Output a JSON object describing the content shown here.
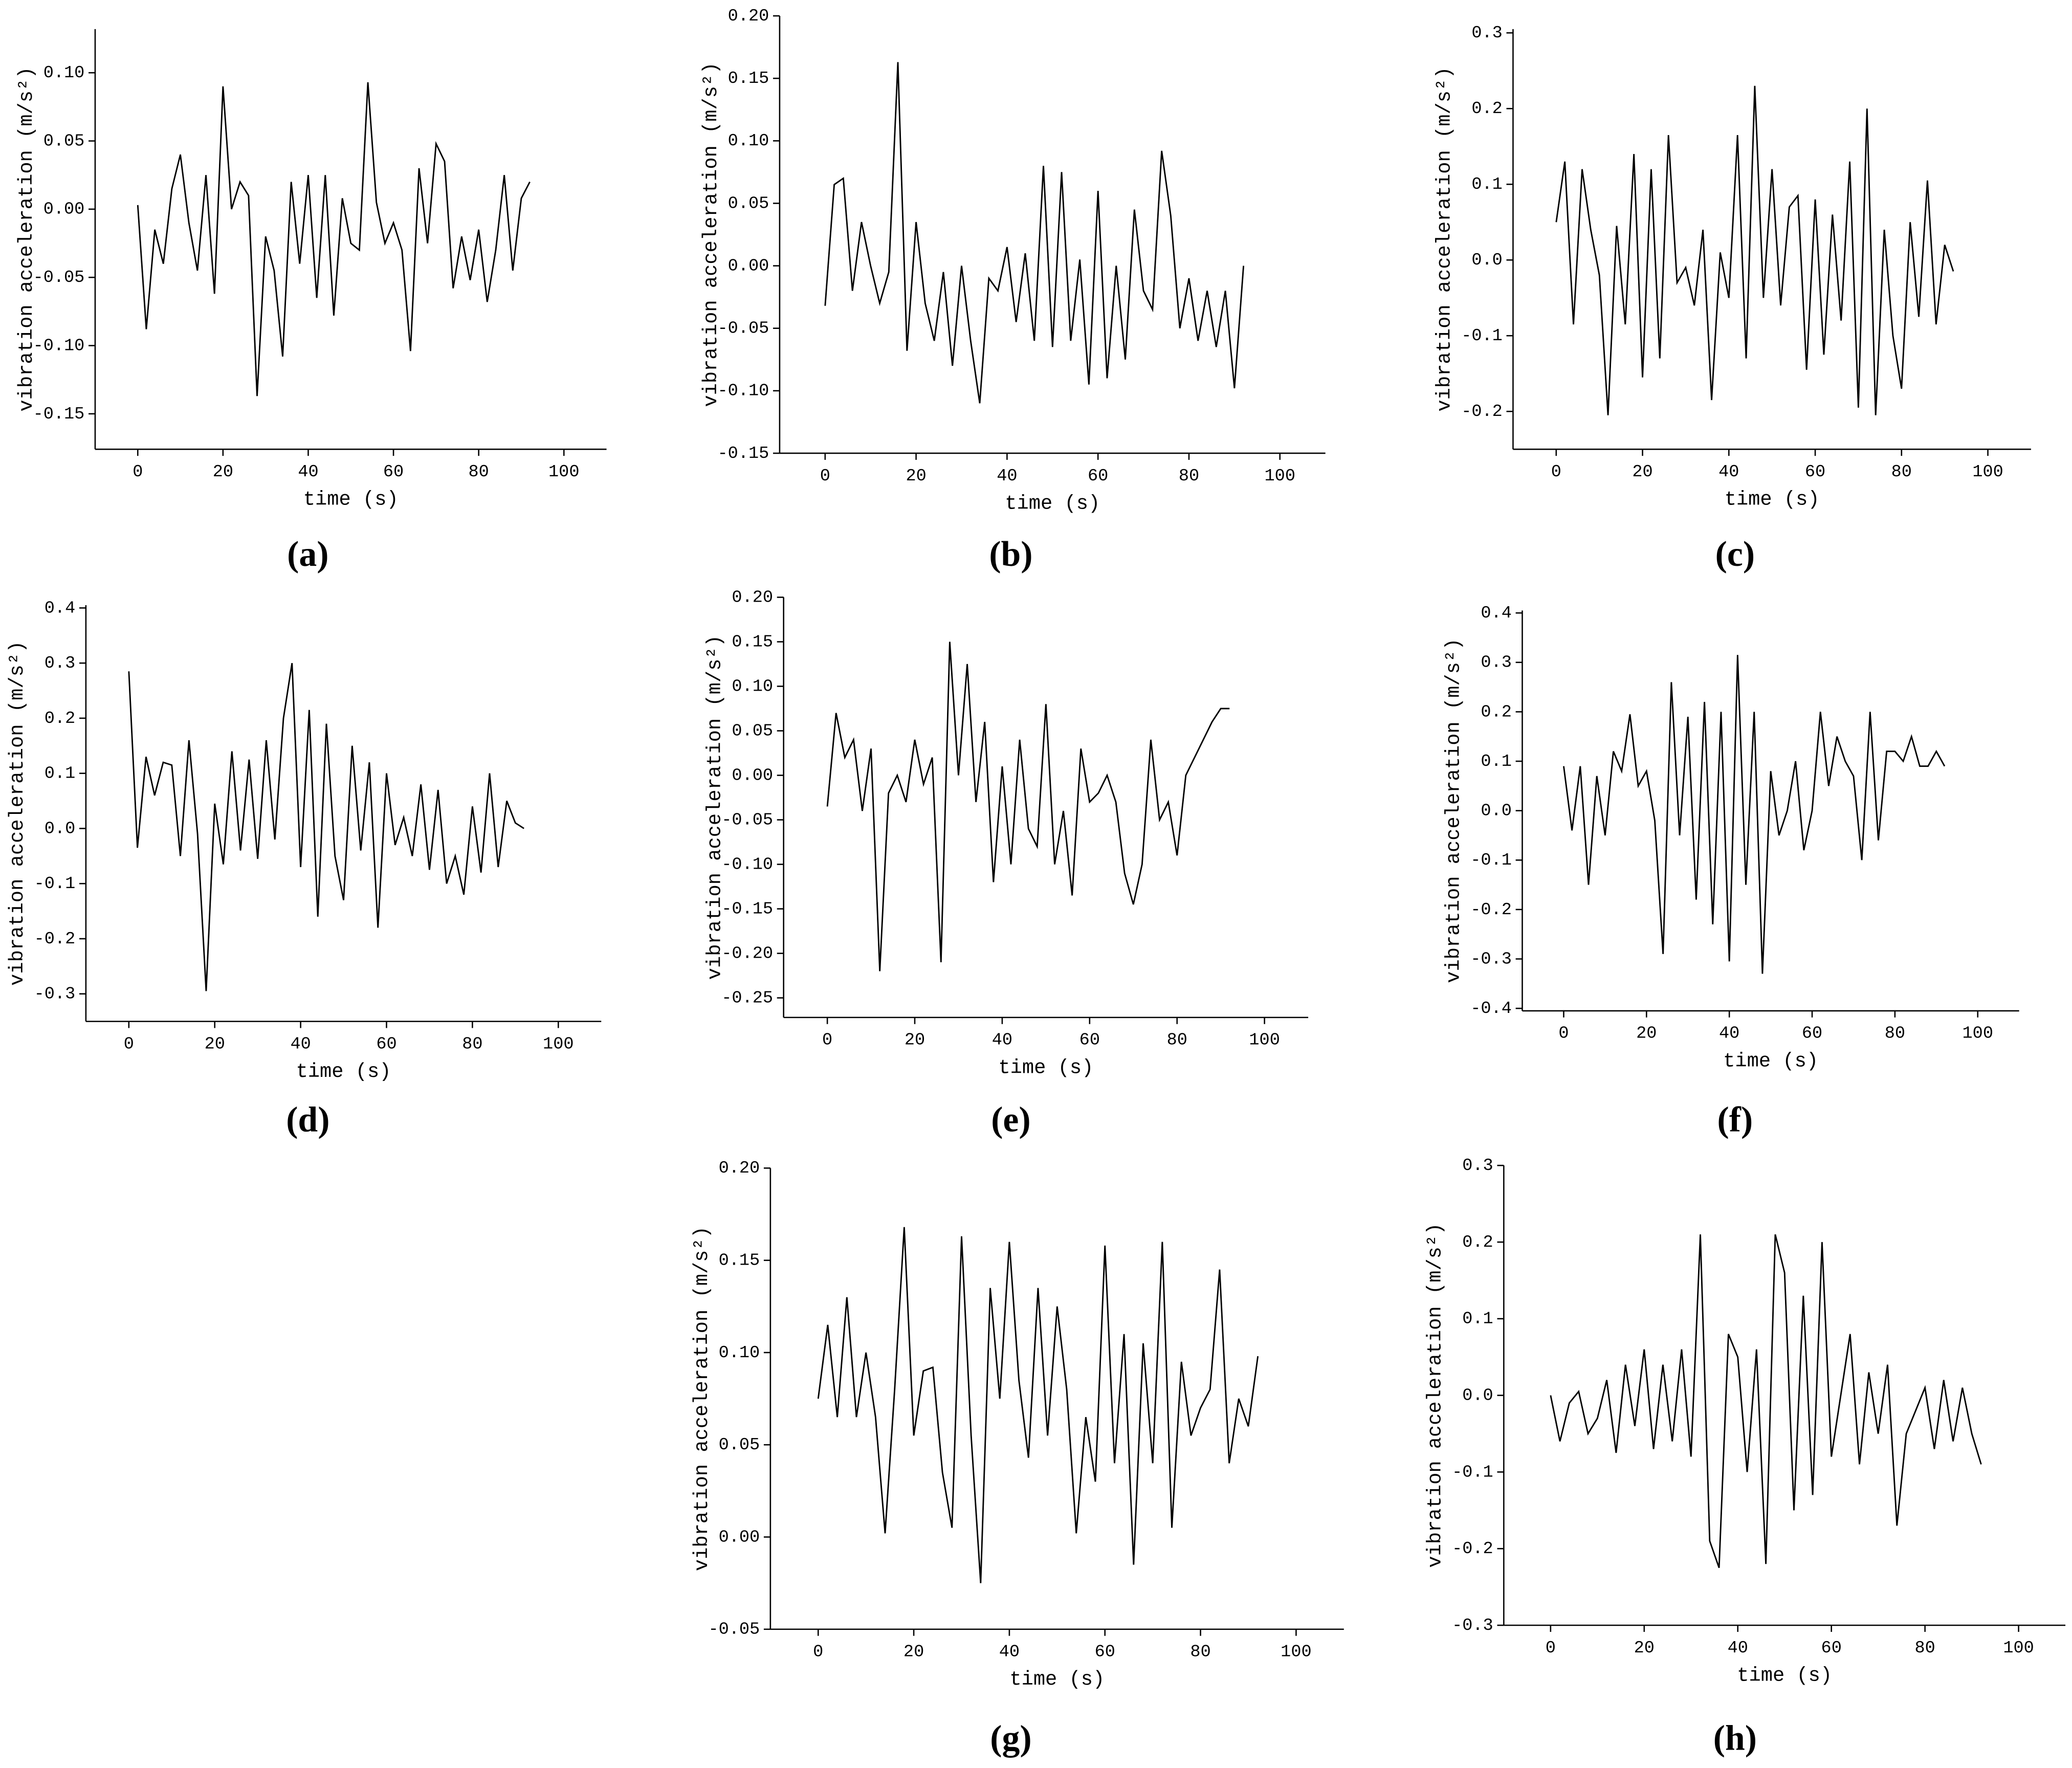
{
  "chart_data": [
    {
      "type": "line",
      "label": "(a)",
      "xlabel": "time (s)",
      "ylabel": "vibration acceleration (m/s²)",
      "color": "#000000",
      "x": [
        0,
        2,
        4,
        6,
        8,
        10,
        12,
        14,
        16,
        18,
        20,
        22,
        24,
        26,
        28,
        30,
        32,
        34,
        36,
        38,
        40,
        42,
        44,
        46,
        48,
        50,
        52,
        54,
        56,
        58,
        60,
        62,
        64,
        66,
        68,
        70,
        72,
        74,
        76,
        78,
        80,
        82,
        84,
        86,
        88,
        90,
        92
      ],
      "values": [
        0.003,
        -0.088,
        -0.015,
        -0.04,
        0.015,
        0.04,
        -0.01,
        -0.045,
        0.025,
        -0.062,
        0.09,
        0.0,
        0.02,
        0.01,
        -0.137,
        -0.02,
        -0.045,
        -0.108,
        0.02,
        -0.04,
        0.025,
        -0.065,
        0.025,
        -0.078,
        0.008,
        -0.025,
        -0.03,
        0.093,
        0.005,
        -0.025,
        -0.01,
        -0.03,
        -0.104,
        0.03,
        -0.025,
        0.048,
        0.035,
        -0.058,
        -0.02,
        -0.052,
        -0.015,
        -0.068,
        -0.03,
        0.025,
        -0.045,
        0.008,
        0.02
      ],
      "xlim": [
        -10,
        110
      ],
      "xticks": [
        0,
        20,
        40,
        60,
        80,
        100
      ],
      "ylim": [
        -0.176,
        0.132
      ],
      "yticks": [
        -0.15,
        {
          "value": -0.1,
          "label": "-0.10"
        },
        -0.05,
        {
          "value": 0,
          "label": "0.00"
        },
        0.05,
        {
          "value": 0.1,
          "label": "0.10"
        }
      ]
    },
    {
      "type": "line",
      "label": "(b)",
      "xlabel": "time (s)",
      "ylabel": "vibration acceleration (m/s²)",
      "color": "#000000",
      "x": [
        0,
        2,
        4,
        6,
        8,
        10,
        12,
        14,
        16,
        18,
        20,
        22,
        24,
        26,
        28,
        30,
        32,
        34,
        36,
        38,
        40,
        42,
        44,
        46,
        48,
        50,
        52,
        54,
        56,
        58,
        60,
        62,
        64,
        66,
        68,
        70,
        72,
        74,
        76,
        78,
        80,
        82,
        84,
        86,
        88,
        90,
        92
      ],
      "values": [
        -0.032,
        0.065,
        0.07,
        -0.02,
        0.035,
        0.0,
        -0.03,
        -0.005,
        0.163,
        -0.068,
        0.035,
        -0.03,
        -0.06,
        -0.005,
        -0.08,
        0.0,
        -0.06,
        -0.11,
        -0.01,
        -0.02,
        0.015,
        -0.045,
        0.01,
        -0.06,
        0.08,
        -0.065,
        0.075,
        -0.06,
        0.005,
        -0.095,
        0.06,
        -0.09,
        0.0,
        -0.075,
        0.045,
        -0.02,
        -0.035,
        0.092,
        0.04,
        -0.05,
        -0.01,
        -0.06,
        -0.02,
        -0.065,
        -0.02,
        -0.098,
        0.0
      ],
      "xlim": [
        -10,
        110
      ],
      "xticks": [
        0,
        20,
        40,
        60,
        80,
        100
      ],
      "ylim": [
        -0.15,
        0.2
      ],
      "yticks": [
        -0.15,
        {
          "value": -0.1,
          "label": "-0.10"
        },
        -0.05,
        {
          "value": 0,
          "label": "0.00"
        },
        0.05,
        {
          "value": 0.1,
          "label": "0.10"
        },
        0.15,
        {
          "value": 0.2,
          "label": "0.20"
        }
      ]
    },
    {
      "type": "line",
      "label": "(c)",
      "xlabel": "time (s)",
      "ylabel": "vibration acceleration (m/s²)",
      "color": "#000000",
      "x": [
        0,
        2,
        4,
        6,
        8,
        10,
        12,
        14,
        16,
        18,
        20,
        22,
        24,
        26,
        28,
        30,
        32,
        34,
        36,
        38,
        40,
        42,
        44,
        46,
        48,
        50,
        52,
        54,
        56,
        58,
        60,
        62,
        64,
        66,
        68,
        70,
        72,
        74,
        76,
        78,
        80,
        82,
        84,
        86,
        88,
        90,
        92
      ],
      "values": [
        0.05,
        0.13,
        -0.085,
        0.12,
        0.04,
        -0.02,
        -0.205,
        0.045,
        -0.085,
        0.14,
        -0.155,
        0.12,
        -0.13,
        0.165,
        -0.03,
        -0.01,
        -0.06,
        0.04,
        -0.185,
        0.01,
        -0.05,
        0.165,
        -0.13,
        0.23,
        -0.05,
        0.12,
        -0.06,
        0.07,
        0.085,
        -0.145,
        0.08,
        -0.125,
        0.06,
        -0.08,
        0.13,
        -0.195,
        0.2,
        -0.205,
        0.04,
        -0.1,
        -0.17,
        0.05,
        -0.075,
        0.105,
        -0.085,
        0.02,
        -0.015
      ],
      "xlim": [
        -10,
        110
      ],
      "xticks": [
        0,
        20,
        40,
        60,
        80,
        100
      ],
      "ylim": [
        -0.25,
        0.305
      ],
      "yticks": [
        -0.2,
        -0.1,
        {
          "value": 0,
          "label": "0.0"
        },
        0.1,
        0.2,
        0.3
      ]
    },
    {
      "type": "line",
      "label": "(d)",
      "xlabel": "time (s)",
      "ylabel": "vibration acceleration (m/s²)",
      "color": "#000000",
      "x": [
        0,
        2,
        4,
        6,
        8,
        10,
        12,
        14,
        16,
        18,
        20,
        22,
        24,
        26,
        28,
        30,
        32,
        34,
        36,
        38,
        40,
        42,
        44,
        46,
        48,
        50,
        52,
        54,
        56,
        58,
        60,
        62,
        64,
        66,
        68,
        70,
        72,
        74,
        76,
        78,
        80,
        82,
        84,
        86,
        88,
        90,
        92
      ],
      "values": [
        0.285,
        -0.035,
        0.13,
        0.06,
        0.12,
        0.115,
        -0.05,
        0.16,
        -0.01,
        -0.295,
        0.045,
        -0.065,
        0.14,
        -0.04,
        0.125,
        -0.055,
        0.16,
        -0.02,
        0.2,
        0.3,
        -0.07,
        0.215,
        -0.16,
        0.19,
        -0.05,
        -0.13,
        0.15,
        -0.04,
        0.12,
        -0.18,
        0.1,
        -0.03,
        0.02,
        -0.05,
        0.08,
        -0.075,
        0.07,
        -0.1,
        -0.05,
        -0.12,
        0.04,
        -0.08,
        0.1,
        -0.07,
        0.05,
        0.01,
        0.0
      ],
      "xlim": [
        -10,
        110
      ],
      "xticks": [
        0,
        20,
        40,
        60,
        80,
        100
      ],
      "ylim": [
        -0.35,
        0.405
      ],
      "yticks": [
        -0.3,
        -0.2,
        -0.1,
        {
          "value": 0,
          "label": "0.0"
        },
        0.1,
        0.2,
        0.3,
        0.4
      ]
    },
    {
      "type": "line",
      "label": "(e)",
      "xlabel": "time (s)",
      "ylabel": "vibration acceleration (m/s²)",
      "color": "#000000",
      "x": [
        0,
        2,
        4,
        6,
        8,
        10,
        12,
        14,
        16,
        18,
        20,
        22,
        24,
        26,
        28,
        30,
        32,
        34,
        36,
        38,
        40,
        42,
        44,
        46,
        48,
        50,
        52,
        54,
        56,
        58,
        60,
        62,
        64,
        66,
        68,
        70,
        72,
        74,
        76,
        78,
        80,
        82,
        84,
        86,
        88,
        90,
        92
      ],
      "values": [
        -0.035,
        0.07,
        0.02,
        0.04,
        -0.04,
        0.03,
        -0.22,
        -0.02,
        0.0,
        -0.03,
        0.04,
        -0.01,
        0.02,
        -0.21,
        0.15,
        0.0,
        0.125,
        -0.03,
        0.06,
        -0.12,
        0.01,
        -0.1,
        0.04,
        -0.06,
        -0.08,
        0.08,
        -0.1,
        -0.04,
        -0.135,
        0.03,
        -0.03,
        -0.02,
        0.0,
        -0.03,
        -0.11,
        -0.145,
        -0.1,
        0.04,
        -0.05,
        -0.03,
        -0.09,
        0.0,
        0.02,
        0.04,
        0.06,
        0.075,
        0.075
      ],
      "xlim": [
        -10,
        110
      ],
      "xticks": [
        0,
        20,
        40,
        60,
        80,
        100
      ],
      "ylim": [
        -0.272,
        0.2
      ],
      "yticks": [
        -0.25,
        {
          "value": -0.2,
          "label": "-0.20"
        },
        -0.15,
        {
          "value": -0.1,
          "label": "-0.10"
        },
        -0.05,
        {
          "value": 0,
          "label": "0.00"
        },
        0.05,
        {
          "value": 0.1,
          "label": "0.10"
        },
        0.15,
        {
          "value": 0.2,
          "label": "0.20"
        }
      ]
    },
    {
      "type": "line",
      "label": "(f)",
      "xlabel": "time (s)",
      "ylabel": "vibration acceleration (m/s²)",
      "color": "#000000",
      "x": [
        0,
        2,
        4,
        6,
        8,
        10,
        12,
        14,
        16,
        18,
        20,
        22,
        24,
        26,
        28,
        30,
        32,
        34,
        36,
        38,
        40,
        42,
        44,
        46,
        48,
        50,
        52,
        54,
        56,
        58,
        60,
        62,
        64,
        66,
        68,
        70,
        72,
        74,
        76,
        78,
        80,
        82,
        84,
        86,
        88,
        90,
        92
      ],
      "values": [
        0.09,
        -0.04,
        0.09,
        -0.15,
        0.07,
        -0.05,
        0.12,
        0.08,
        0.195,
        0.05,
        0.08,
        -0.02,
        -0.29,
        0.26,
        -0.05,
        0.19,
        -0.18,
        0.22,
        -0.23,
        0.2,
        -0.305,
        0.315,
        -0.15,
        0.2,
        -0.33,
        0.08,
        -0.05,
        0.0,
        0.1,
        -0.08,
        0.0,
        0.2,
        0.05,
        0.15,
        0.1,
        0.07,
        -0.1,
        0.2,
        -0.06,
        0.12,
        0.12,
        0.1,
        0.15,
        0.09,
        0.09,
        0.12,
        0.09
      ],
      "xlim": [
        -10,
        110
      ],
      "xticks": [
        0,
        20,
        40,
        60,
        80,
        100
      ],
      "ylim": [
        -0.405,
        0.405
      ],
      "yticks": [
        -0.4,
        -0.3,
        -0.2,
        -0.1,
        {
          "value": 0,
          "label": "0.0"
        },
        0.1,
        0.2,
        0.3,
        0.4
      ]
    },
    {
      "type": "line",
      "label": "(g)",
      "xlabel": "time (s)",
      "ylabel": "vibration acceleration (m/s²)",
      "color": "#000000",
      "x": [
        0,
        2,
        4,
        6,
        8,
        10,
        12,
        14,
        16,
        18,
        20,
        22,
        24,
        26,
        28,
        30,
        32,
        34,
        36,
        38,
        40,
        42,
        44,
        46,
        48,
        50,
        52,
        54,
        56,
        58,
        60,
        62,
        64,
        66,
        68,
        70,
        72,
        74,
        76,
        78,
        80,
        82,
        84,
        86,
        88,
        90,
        92
      ],
      "values": [
        0.075,
        0.115,
        0.065,
        0.13,
        0.065,
        0.1,
        0.065,
        0.002,
        0.08,
        0.168,
        0.055,
        0.09,
        0.092,
        0.035,
        0.005,
        0.163,
        0.055,
        -0.025,
        0.135,
        0.075,
        0.16,
        0.085,
        0.043,
        0.135,
        0.055,
        0.125,
        0.08,
        0.002,
        0.065,
        0.03,
        0.158,
        0.04,
        0.11,
        -0.015,
        0.105,
        0.04,
        0.16,
        0.005,
        0.095,
        0.055,
        0.07,
        0.08,
        0.145,
        0.04,
        0.075,
        0.06,
        0.098
      ],
      "xlim": [
        -10,
        110
      ],
      "xticks": [
        0,
        20,
        40,
        60,
        80,
        100
      ],
      "ylim": [
        -0.05,
        0.2
      ],
      "yticks": [
        -0.05,
        {
          "value": 0,
          "label": "0.00"
        },
        0.05,
        {
          "value": 0.1,
          "label": "0.10"
        },
        0.15,
        {
          "value": 0.2,
          "label": "0.20"
        }
      ]
    },
    {
      "type": "line",
      "label": "(h)",
      "xlabel": "time (s)",
      "ylabel": "vibration acceleration (m/s²)",
      "color": "#000000",
      "x": [
        0,
        2,
        4,
        6,
        8,
        10,
        12,
        14,
        16,
        18,
        20,
        22,
        24,
        26,
        28,
        30,
        32,
        34,
        36,
        38,
        40,
        42,
        44,
        46,
        48,
        50,
        52,
        54,
        56,
        58,
        60,
        62,
        64,
        66,
        68,
        70,
        72,
        74,
        76,
        78,
        80,
        82,
        84,
        86,
        88,
        90,
        92
      ],
      "values": [
        0.0,
        -0.06,
        -0.01,
        0.005,
        -0.05,
        -0.03,
        0.02,
        -0.075,
        0.04,
        -0.04,
        0.06,
        -0.07,
        0.04,
        -0.06,
        0.06,
        -0.08,
        0.21,
        -0.19,
        -0.225,
        0.08,
        0.05,
        -0.1,
        0.06,
        -0.22,
        0.21,
        0.16,
        -0.15,
        0.13,
        -0.13,
        0.2,
        -0.08,
        0.0,
        0.08,
        -0.09,
        0.03,
        -0.05,
        0.04,
        -0.17,
        -0.05,
        -0.02,
        0.01,
        -0.07,
        0.02,
        -0.06,
        0.01,
        -0.05,
        -0.09
      ],
      "xlim": [
        -10,
        110
      ],
      "xticks": [
        0,
        20,
        40,
        60,
        80,
        100
      ],
      "ylim": [
        -0.3,
        0.3
      ],
      "yticks": [
        -0.3,
        -0.2,
        -0.1,
        {
          "value": 0,
          "label": "0.0"
        },
        0.1,
        0.2,
        0.3
      ]
    }
  ]
}
